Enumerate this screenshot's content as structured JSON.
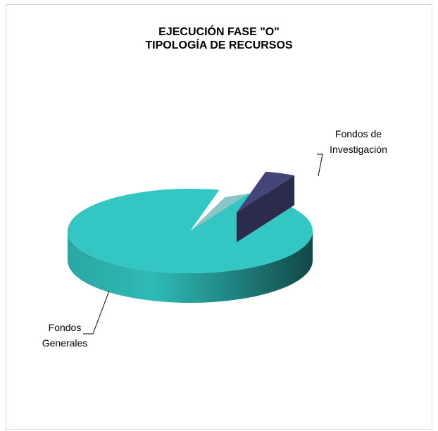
{
  "chart_data": {
    "type": "pie",
    "title_line1": "EJECUCIÓN FASE \"O\"",
    "title_line2": "TIPOLOGÍA DE RECURSOS",
    "slices": [
      {
        "label_line1": "Fondos",
        "label_line2": "Generales",
        "value": 96,
        "color": "#33c6c3"
      },
      {
        "label_line1": "Fondos de",
        "label_line2": "Investigación",
        "value": 4,
        "color": "#3d3d6b"
      }
    ],
    "legend": "none",
    "style": "3d-exploded"
  }
}
